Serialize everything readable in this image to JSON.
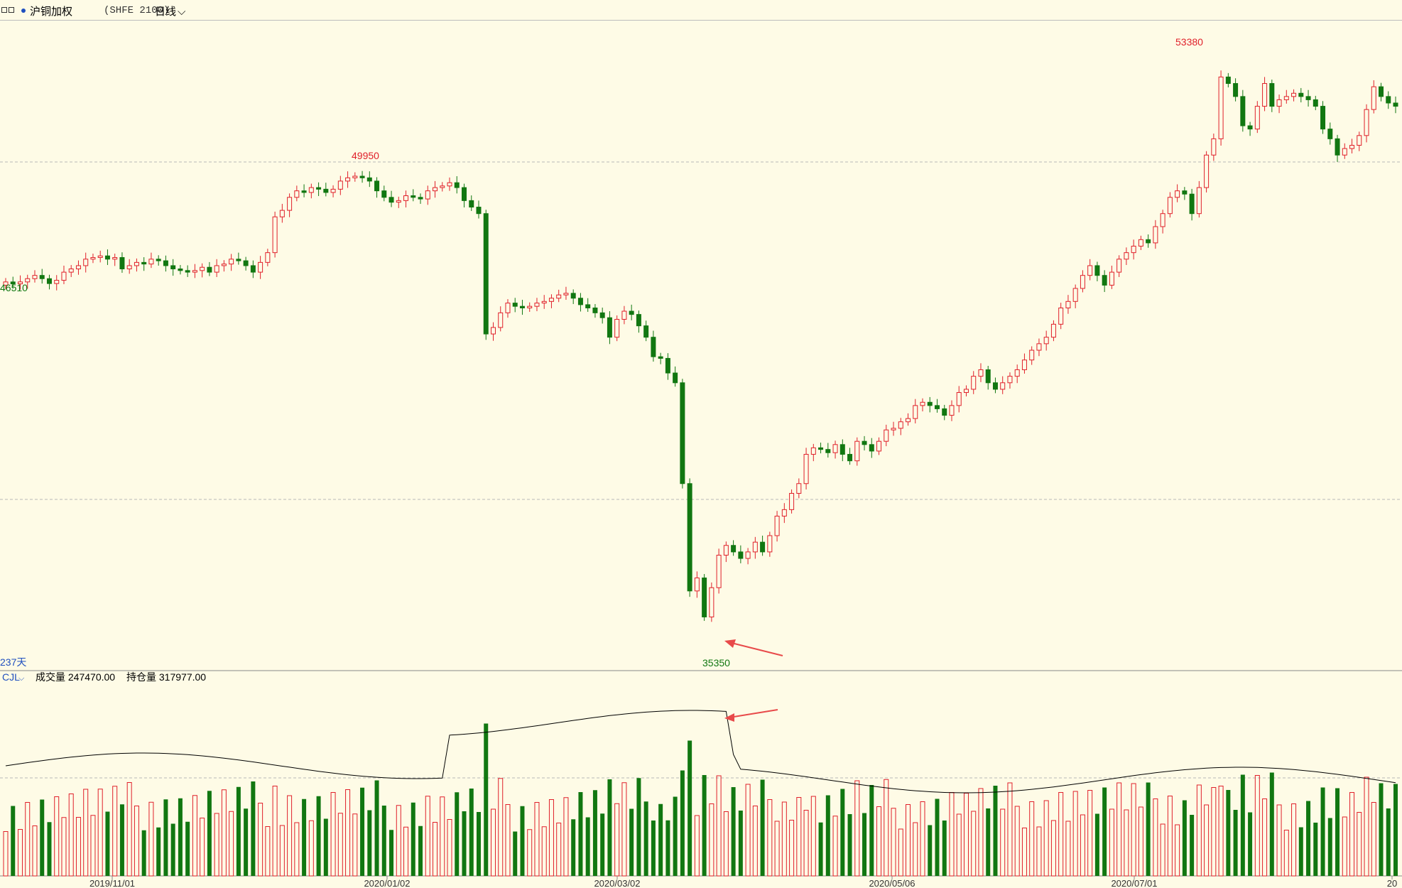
{
  "header": {
    "symbol_name": "沪铜加权",
    "symbol_code": "(SHFE 2100)",
    "period": "日线"
  },
  "main_pane": {
    "high_label": "49950",
    "top_label": "53380",
    "low_label": "35350",
    "left_label": "46510",
    "days_label": "237天"
  },
  "volume_pane": {
    "indicator": "CJL",
    "volume_text": "成交量 247470.00",
    "oi_text": "持仓量 317977.00"
  },
  "chart_data": {
    "type": "candlestick",
    "title": "沪铜加权 (SHFE 2100) 日线",
    "x_ticks": [
      "2019/11/01",
      "2020/01/02",
      "2020/03/02",
      "2020/05/06",
      "2020/07/01",
      "20"
    ],
    "annotations": [
      "49950",
      "53380",
      "35350",
      "46510",
      "237天"
    ],
    "price_series": [
      {
        "close": 46600,
        "hl": 1
      },
      {
        "close": 46540
      },
      {
        "close": 46600
      },
      {
        "close": 46700
      },
      {
        "close": 46800
      },
      {
        "close": 46700
      },
      {
        "close": 46550
      },
      {
        "close": 46650
      },
      {
        "close": 46900
      },
      {
        "close": 47000
      },
      {
        "close": 47100
      },
      {
        "close": 47300
      },
      {
        "close": 47350
      },
      {
        "close": 47400
      },
      {
        "close": 47300
      },
      {
        "close": 47350
      },
      {
        "close": 47000
      },
      {
        "close": 47100
      },
      {
        "close": 47200
      },
      {
        "close": 47150
      },
      {
        "close": 47300
      },
      {
        "close": 47250
      },
      {
        "close": 47100
      },
      {
        "close": 47000
      },
      {
        "close": 46950
      },
      {
        "close": 46900
      },
      {
        "close": 46950
      },
      {
        "close": 47050
      },
      {
        "close": 46900
      },
      {
        "close": 47100
      },
      {
        "close": 47150
      },
      {
        "close": 47300
      },
      {
        "close": 47250
      },
      {
        "close": 47100
      },
      {
        "close": 46900
      },
      {
        "close": 47200
      },
      {
        "close": 47500
      },
      {
        "close": 48600
      },
      {
        "close": 48800
      },
      {
        "close": 49200
      },
      {
        "close": 49400
      },
      {
        "close": 49350
      },
      {
        "close": 49500
      },
      {
        "close": 49450
      },
      {
        "close": 49350
      },
      {
        "close": 49450
      },
      {
        "close": 49700
      },
      {
        "close": 49800
      },
      {
        "close": 49850
      },
      {
        "close": 49800
      },
      {
        "close": 49700
      },
      {
        "close": 49400
      },
      {
        "close": 49200
      },
      {
        "close": 49050
      },
      {
        "close": 49100
      },
      {
        "close": 49250
      },
      {
        "close": 49200
      },
      {
        "close": 49150
      },
      {
        "close": 49400
      },
      {
        "close": 49500
      },
      {
        "close": 49550
      },
      {
        "close": 49650
      },
      {
        "close": 49500
      },
      {
        "close": 49100
      },
      {
        "close": 48900
      },
      {
        "close": 48700
      },
      {
        "close": 45000
      },
      {
        "close": 45200
      },
      {
        "close": 45650
      },
      {
        "close": 45950
      },
      {
        "close": 45850
      },
      {
        "close": 45800
      },
      {
        "close": 45850
      },
      {
        "close": 45950
      },
      {
        "close": 46000
      },
      {
        "close": 46100
      },
      {
        "close": 46200
      },
      {
        "close": 46250
      },
      {
        "close": 46100
      },
      {
        "close": 45900
      },
      {
        "close": 45800
      },
      {
        "close": 45650
      },
      {
        "close": 45500
      },
      {
        "close": 44900
      },
      {
        "close": 45450
      },
      {
        "close": 45700
      },
      {
        "close": 45600
      },
      {
        "close": 45250
      },
      {
        "close": 44900
      },
      {
        "close": 44300
      },
      {
        "close": 44250
      },
      {
        "close": 43800
      },
      {
        "close": 43500
      },
      {
        "close": 40400
      },
      {
        "close": 37100
      },
      {
        "close": 37500
      },
      {
        "close": 36300
      },
      {
        "close": 37200
      },
      {
        "close": 38200
      },
      {
        "close": 38500
      },
      {
        "close": 38300
      },
      {
        "close": 38100
      },
      {
        "close": 38300
      },
      {
        "close": 38600
      },
      {
        "close": 38300
      },
      {
        "close": 38800
      },
      {
        "close": 39400
      },
      {
        "close": 39600
      },
      {
        "close": 40100
      },
      {
        "close": 40400
      },
      {
        "close": 41300
      },
      {
        "close": 41500
      },
      {
        "close": 41450
      },
      {
        "close": 41350
      },
      {
        "close": 41600
      },
      {
        "close": 41300
      },
      {
        "close": 41100
      },
      {
        "close": 41700
      },
      {
        "close": 41600
      },
      {
        "close": 41400
      },
      {
        "close": 41700
      },
      {
        "close": 42050
      },
      {
        "close": 42100
      },
      {
        "close": 42300
      },
      {
        "close": 42400
      },
      {
        "close": 42800
      },
      {
        "close": 42900
      },
      {
        "close": 42800
      },
      {
        "close": 42700
      },
      {
        "close": 42500
      },
      {
        "close": 42800
      },
      {
        "close": 43200
      },
      {
        "close": 43300
      },
      {
        "close": 43700
      },
      {
        "close": 43900
      },
      {
        "close": 43500
      },
      {
        "close": 43300
      },
      {
        "close": 43500
      },
      {
        "close": 43700
      },
      {
        "close": 43900
      },
      {
        "close": 44200
      },
      {
        "close": 44500
      },
      {
        "close": 44700
      },
      {
        "close": 44900
      },
      {
        "close": 45300
      },
      {
        "close": 45800
      },
      {
        "close": 46000
      },
      {
        "close": 46400
      },
      {
        "close": 46800
      },
      {
        "close": 47100
      },
      {
        "close": 46800
      },
      {
        "close": 46500
      },
      {
        "close": 46900
      },
      {
        "close": 47300
      },
      {
        "close": 47500
      },
      {
        "close": 47700
      },
      {
        "close": 47900
      },
      {
        "close": 47800
      },
      {
        "close": 48300
      },
      {
        "close": 48700
      },
      {
        "close": 49200
      },
      {
        "close": 49400
      },
      {
        "close": 49300
      },
      {
        "close": 48700
      },
      {
        "close": 49500
      },
      {
        "close": 50500
      },
      {
        "close": 51000
      },
      {
        "close": 52900
      },
      {
        "close": 52700
      },
      {
        "close": 52300
      },
      {
        "close": 51400
      },
      {
        "close": 51300
      },
      {
        "close": 52000
      },
      {
        "close": 52700
      },
      {
        "close": 52000
      },
      {
        "close": 52200
      },
      {
        "close": 52300
      },
      {
        "close": 52400
      },
      {
        "close": 52300
      },
      {
        "close": 52200
      },
      {
        "close": 52000
      },
      {
        "close": 51300
      },
      {
        "close": 51000
      },
      {
        "close": 50500
      },
      {
        "close": 50700
      },
      {
        "close": 50800
      },
      {
        "close": 51100
      },
      {
        "close": 51900
      },
      {
        "close": 52600
      },
      {
        "close": 52300
      },
      {
        "close": 52100
      },
      {
        "close": 52000
      }
    ],
    "volume": "bars per session (red=up, green=down) with open-interest line",
    "price_range_visible": [
      35000,
      54000
    ]
  }
}
